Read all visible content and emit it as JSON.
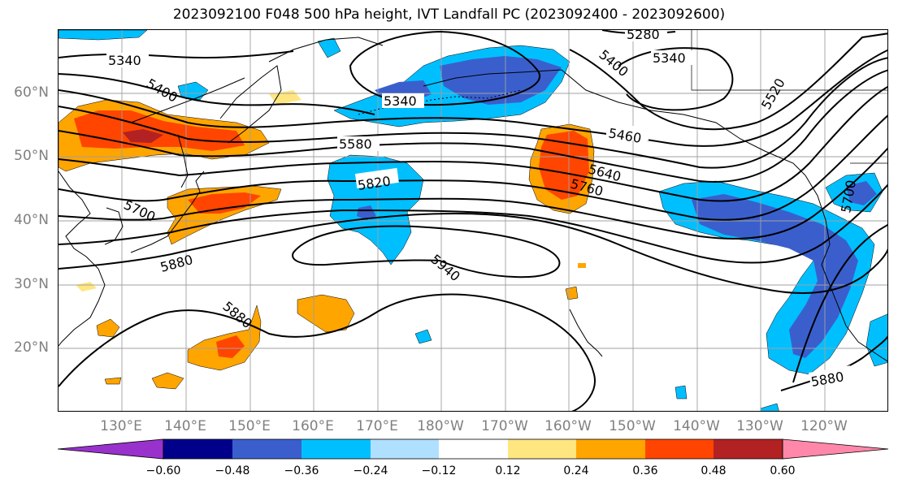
{
  "title": "2023092100 F048 500 hPa height, IVT Landfall PC (2023092400 - 2023092600)",
  "lat_labels": [
    "60°N",
    "50°N",
    "40°N",
    "30°N",
    "20°N"
  ],
  "lon_labels": [
    "130°E",
    "140°E",
    "150°E",
    "160°E",
    "170°E",
    "180°W",
    "170°W",
    "160°W",
    "150°W",
    "140°W",
    "130°W",
    "120°W"
  ],
  "contour_labels": [
    "5280",
    "5340",
    "5340",
    "5400",
    "5400",
    "5340",
    "5460",
    "5520",
    "5580",
    "5640",
    "5700",
    "5700",
    "5760",
    "5820",
    "5880",
    "5880",
    "5880",
    "5940"
  ],
  "colorbar": {
    "tick_labels": [
      "−0.60",
      "−0.48",
      "−0.36",
      "−0.24",
      "−0.12",
      "0.12",
      "0.24",
      "0.36",
      "0.48",
      "0.60"
    ],
    "colors": [
      "#9932cc",
      "#00008b",
      "#3a5fcd",
      "#00bfff",
      "#b0e0ff",
      "#ffffff",
      "#ffe680",
      "#ffa500",
      "#ff4500",
      "#b22222",
      "#ff88aa"
    ]
  }
}
